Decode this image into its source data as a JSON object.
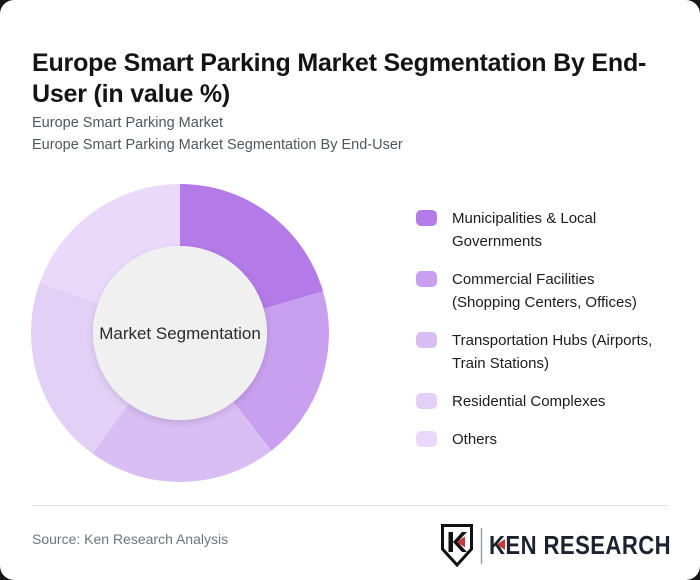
{
  "page": {
    "title": "Europe Smart Parking Market Segmentation By End-User (in value %)",
    "subtitle_line1": "Europe Smart Parking Market",
    "subtitle_line2": "Europe Smart Parking Market Segmentation By End-User"
  },
  "chart_data": {
    "type": "pie",
    "variant": "donut",
    "title": "Europe Smart Parking Market Segmentation By End-User (in value %)",
    "center_label": "Market Segmentation",
    "categories": [
      "Municipalities & Local Governments",
      "Commercial Facilities (Shopping Centers, Offices)",
      "Transportation Hubs (Airports, Train Stations)",
      "Residential Complexes",
      "Others"
    ],
    "values": [
      20.5,
      19,
      20.5,
      20.5,
      19.5
    ],
    "values_note": "no numeric labels shown in the figure; segment shares estimated from arc angles (all roughly equal)",
    "unit": "percent of market value",
    "colors": [
      "#b37ae8",
      "#c9a0f0",
      "#d9bef4",
      "#e3d0f7",
      "#ead9fa"
    ],
    "start_angle_deg": 0,
    "direction": "clockwise from 12 o'clock",
    "legend_position": "right",
    "inner_circle_color": "#f0f0f0",
    "legend": [
      {
        "lines": [
          "Municipalities & Local",
          "Governments"
        ],
        "color": "#b37ae8"
      },
      {
        "lines": [
          "Commercial Facilities",
          "(Shopping Centers, Offices)"
        ],
        "color": "#c9a0f0"
      },
      {
        "lines": [
          "Transportation Hubs (Airports,",
          "Train Stations)"
        ],
        "color": "#d9bef4"
      },
      {
        "lines": [
          "Residential Complexes"
        ],
        "color": "#e3d0f7"
      },
      {
        "lines": [
          "Others"
        ],
        "color": "#ead9fa"
      }
    ]
  },
  "footer": {
    "source": "Source: Ken Research Analysis",
    "logo": {
      "brand": "KEN RESEARCH",
      "monogram": "K",
      "accent_color": "#c23b3b",
      "ink_color": "#1d232e"
    }
  }
}
